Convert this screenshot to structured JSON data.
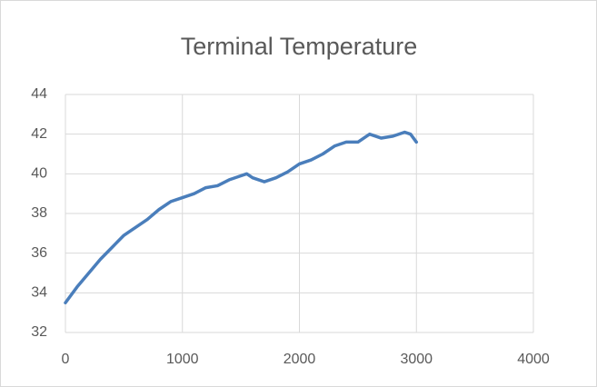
{
  "chart_data": {
    "type": "line",
    "title": "Terminal Temperature",
    "x": [
      0,
      100,
      200,
      300,
      400,
      500,
      600,
      700,
      800,
      900,
      1000,
      1100,
      1200,
      1300,
      1400,
      1500,
      1550,
      1600,
      1700,
      1800,
      1900,
      2000,
      2100,
      2200,
      2300,
      2400,
      2500,
      2600,
      2700,
      2800,
      2900,
      2950,
      3000
    ],
    "series": [
      {
        "name": "Terminal Temperature",
        "color": "#4a7ebb",
        "values": [
          33.5,
          34.3,
          35.0,
          35.7,
          36.3,
          36.9,
          37.3,
          37.7,
          38.2,
          38.6,
          38.8,
          39.0,
          39.3,
          39.4,
          39.7,
          39.9,
          40.0,
          39.8,
          39.6,
          39.8,
          40.1,
          40.5,
          40.7,
          41.0,
          41.4,
          41.6,
          41.6,
          42.0,
          41.8,
          41.9,
          42.1,
          42.0,
          41.6
        ]
      }
    ],
    "xlim": [
      0,
      4000
    ],
    "xticks": [
      0,
      1000,
      2000,
      3000,
      4000
    ],
    "ylim": [
      32,
      44
    ],
    "yticks": [
      32,
      34,
      36,
      38,
      40,
      42,
      44
    ],
    "grid": true
  }
}
